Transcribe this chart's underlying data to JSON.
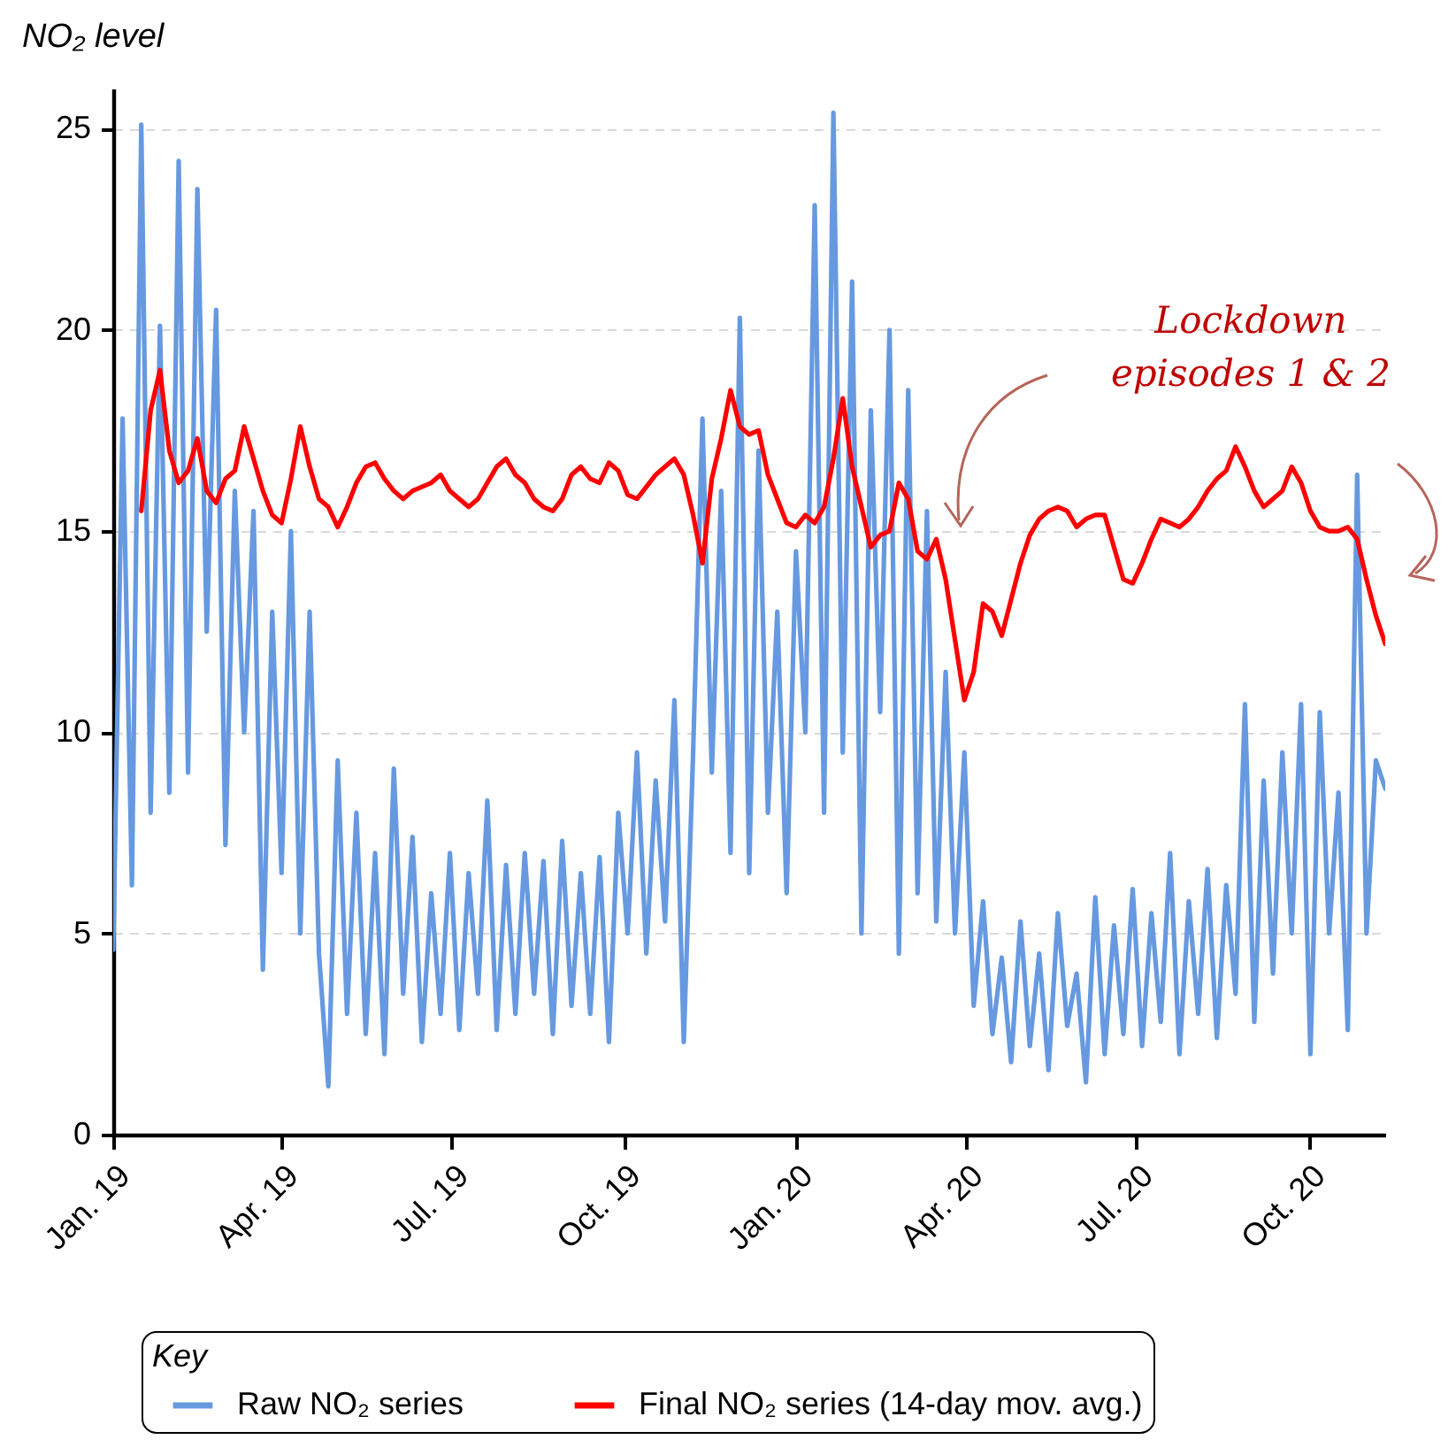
{
  "chart_data": {
    "type": "line",
    "ylabel": "NO₂ level",
    "legend_title": "Key",
    "legend": "bottom",
    "grid": "y",
    "annotations": [
      "Lockdown episodes 1 & 2"
    ],
    "xlim": [
      "2019-01-01",
      "2020-11-11"
    ],
    "xticks": [
      {
        "value": "2019-01-01",
        "label": "Jan. 19"
      },
      {
        "value": "2019-04-01",
        "label": "Apr. 19"
      },
      {
        "value": "2019-07-01",
        "label": "Jul. 19"
      },
      {
        "value": "2019-10-01",
        "label": "Oct. 19"
      },
      {
        "value": "2020-01-01",
        "label": "Jan. 20"
      },
      {
        "value": "2020-04-01",
        "label": "Apr. 20"
      },
      {
        "value": "2020-07-01",
        "label": "Jul. 20"
      },
      {
        "value": "2020-10-01",
        "label": "Oct. 20"
      }
    ],
    "ylim": [
      0,
      26
    ],
    "yticks": [
      0,
      5,
      10,
      15,
      20,
      25
    ],
    "x": [
      "2019-01-01",
      "2019-01-06",
      "2019-01-11",
      "2019-01-16",
      "2019-01-21",
      "2019-01-26",
      "2019-01-31",
      "2019-02-05",
      "2019-02-10",
      "2019-02-15",
      "2019-02-20",
      "2019-02-25",
      "2019-03-02",
      "2019-03-07",
      "2019-03-12",
      "2019-03-17",
      "2019-03-22",
      "2019-03-27",
      "2019-04-01",
      "2019-04-06",
      "2019-04-11",
      "2019-04-16",
      "2019-04-21",
      "2019-04-26",
      "2019-05-01",
      "2019-05-06",
      "2019-05-11",
      "2019-05-16",
      "2019-05-21",
      "2019-05-26",
      "2019-05-31",
      "2019-06-05",
      "2019-06-10",
      "2019-06-15",
      "2019-06-20",
      "2019-06-25",
      "2019-06-30",
      "2019-07-05",
      "2019-07-10",
      "2019-07-15",
      "2019-07-20",
      "2019-07-25",
      "2019-07-30",
      "2019-08-04",
      "2019-08-09",
      "2019-08-14",
      "2019-08-19",
      "2019-08-24",
      "2019-08-29",
      "2019-09-03",
      "2019-09-08",
      "2019-09-13",
      "2019-09-18",
      "2019-09-23",
      "2019-09-28",
      "2019-10-03",
      "2019-10-08",
      "2019-10-13",
      "2019-10-18",
      "2019-10-23",
      "2019-10-28",
      "2019-11-02",
      "2019-11-07",
      "2019-11-12",
      "2019-11-17",
      "2019-11-22",
      "2019-11-27",
      "2019-12-02",
      "2019-12-07",
      "2019-12-12",
      "2019-12-17",
      "2019-12-22",
      "2019-12-27",
      "2020-01-01",
      "2020-01-06",
      "2020-01-11",
      "2020-01-16",
      "2020-01-21",
      "2020-01-26",
      "2020-01-31",
      "2020-02-05",
      "2020-02-10",
      "2020-02-15",
      "2020-02-20",
      "2020-02-25",
      "2020-03-01",
      "2020-03-06",
      "2020-03-11",
      "2020-03-16",
      "2020-03-21",
      "2020-03-26",
      "2020-03-31",
      "2020-04-05",
      "2020-04-10",
      "2020-04-15",
      "2020-04-20",
      "2020-04-25",
      "2020-04-30",
      "2020-05-05",
      "2020-05-10",
      "2020-05-15",
      "2020-05-20",
      "2020-05-25",
      "2020-05-30",
      "2020-06-04",
      "2020-06-09",
      "2020-06-14",
      "2020-06-19",
      "2020-06-24",
      "2020-06-29",
      "2020-07-04",
      "2020-07-09",
      "2020-07-14",
      "2020-07-19",
      "2020-07-24",
      "2020-07-29",
      "2020-08-03",
      "2020-08-08",
      "2020-08-13",
      "2020-08-18",
      "2020-08-23",
      "2020-08-28",
      "2020-09-02",
      "2020-09-07",
      "2020-09-12",
      "2020-09-17",
      "2020-09-22",
      "2020-09-27",
      "2020-10-02",
      "2020-10-07",
      "2020-10-12",
      "2020-10-17",
      "2020-10-22",
      "2020-10-27",
      "2020-11-01",
      "2020-11-06",
      "2020-11-11"
    ],
    "series": [
      {
        "name": "Raw NO₂ series",
        "color": "#6699e0",
        "values": [
          4.6,
          17.8,
          6.2,
          25.1,
          8.0,
          20.1,
          8.5,
          24.2,
          9.0,
          23.5,
          12.5,
          20.5,
          7.2,
          16.0,
          10.0,
          15.5,
          4.1,
          13.0,
          6.5,
          15.0,
          5.0,
          13.0,
          4.5,
          1.2,
          9.3,
          3.0,
          8.0,
          2.5,
          7.0,
          2.0,
          9.1,
          3.5,
          7.4,
          2.3,
          6.0,
          3.0,
          7.0,
          2.6,
          6.5,
          3.5,
          8.3,
          2.6,
          6.7,
          3.0,
          7.0,
          3.5,
          6.8,
          2.5,
          7.3,
          3.2,
          6.5,
          3.0,
          6.9,
          2.3,
          8.0,
          5.0,
          9.5,
          4.5,
          8.8,
          5.3,
          10.8,
          2.3,
          9.5,
          17.8,
          9.0,
          16.0,
          7.0,
          20.3,
          6.5,
          17.0,
          8.0,
          13.0,
          6.0,
          14.5,
          10.0,
          23.1,
          8.0,
          25.4,
          9.5,
          21.2,
          5.0,
          18.0,
          10.5,
          20.0,
          4.5,
          18.5,
          6.0,
          15.5,
          5.3,
          11.5,
          5.0,
          9.5,
          3.2,
          5.8,
          2.5,
          4.4,
          1.8,
          5.3,
          2.2,
          4.5,
          1.6,
          5.5,
          2.7,
          4.0,
          1.3,
          5.9,
          2.0,
          5.2,
          2.5,
          6.1,
          2.2,
          5.5,
          2.8,
          7.0,
          2.0,
          5.8,
          3.0,
          6.6,
          2.4,
          6.2,
          3.5,
          10.7,
          2.8,
          8.8,
          4.0,
          9.5,
          5.0,
          10.7,
          2.0,
          10.5,
          5.0,
          8.5,
          2.6,
          16.4,
          5.0,
          9.3,
          8.6
        ]
      },
      {
        "name": "Final NO₂ series (14-day mov. avg.)",
        "color": "#ff0000",
        "values": [
          null,
          null,
          null,
          15.5,
          18.0,
          19.0,
          17.0,
          16.2,
          16.5,
          17.3,
          16.0,
          15.7,
          16.3,
          16.5,
          17.6,
          16.8,
          16.0,
          15.4,
          15.2,
          16.3,
          17.6,
          16.6,
          15.8,
          15.6,
          15.1,
          15.6,
          16.2,
          16.6,
          16.7,
          16.3,
          16.0,
          15.8,
          16.0,
          16.1,
          16.2,
          16.4,
          16.0,
          15.8,
          15.6,
          15.8,
          16.2,
          16.6,
          16.8,
          16.4,
          16.2,
          15.8,
          15.6,
          15.5,
          15.8,
          16.4,
          16.6,
          16.3,
          16.2,
          16.7,
          16.5,
          15.9,
          15.8,
          16.1,
          16.4,
          16.6,
          16.8,
          16.4,
          15.4,
          14.2,
          16.3,
          17.3,
          18.5,
          17.6,
          17.4,
          17.5,
          16.4,
          15.8,
          15.2,
          15.1,
          15.4,
          15.2,
          15.6,
          16.8,
          18.3,
          16.6,
          15.6,
          14.6,
          14.9,
          15.0,
          16.2,
          15.8,
          14.5,
          14.3,
          14.8,
          13.8,
          12.3,
          10.8,
          11.5,
          13.2,
          13.0,
          12.4,
          13.3,
          14.2,
          14.9,
          15.3,
          15.5,
          15.6,
          15.5,
          15.1,
          15.3,
          15.4,
          15.4,
          14.6,
          13.8,
          13.7,
          14.2,
          14.8,
          15.3,
          15.2,
          15.1,
          15.3,
          15.6,
          16.0,
          16.3,
          16.5,
          17.1,
          16.6,
          16.0,
          15.6,
          15.8,
          16.0,
          16.6,
          16.2,
          15.5,
          15.1,
          15.0,
          15.0,
          15.1,
          14.8,
          13.8,
          12.9,
          12.2
        ]
      }
    ]
  }
}
